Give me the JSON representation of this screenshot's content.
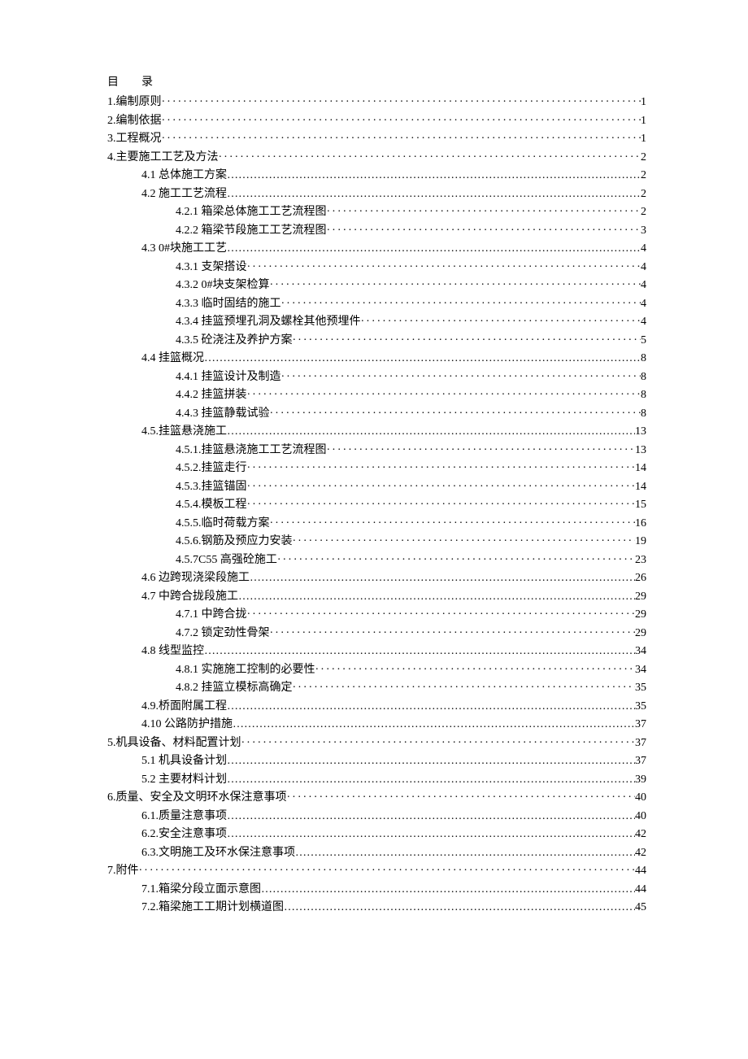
{
  "heading": "目　录",
  "leaders": {
    "dotted": "dotted",
    "cjk": "cjk"
  },
  "entries": [
    {
      "indent": 0,
      "title": "1.编制原则",
      "page": "1",
      "leader": "dotted"
    },
    {
      "indent": 0,
      "title": "2.编制依据",
      "page": "1",
      "leader": "dotted"
    },
    {
      "indent": 0,
      "title": "3.工程概况",
      "page": "1",
      "leader": "dotted"
    },
    {
      "indent": 0,
      "title": "4.主要施工工艺及方法",
      "page": "2",
      "leader": "dotted"
    },
    {
      "indent": 1,
      "title": "4.1 总体施工方案",
      "page": "2",
      "leader": "cjk"
    },
    {
      "indent": 1,
      "title": "4.2 施工工艺流程",
      "page": "2",
      "leader": "cjk"
    },
    {
      "indent": 2,
      "title": "4.2.1 箱梁总体施工工艺流程图",
      "page": "2",
      "leader": "dotted"
    },
    {
      "indent": 2,
      "title": "4.2.2 箱梁节段施工工艺流程图",
      "page": "3",
      "leader": "dotted"
    },
    {
      "indent": 1,
      "title": "4.3 0#块施工工艺",
      "page": "4",
      "leader": "cjk"
    },
    {
      "indent": 2,
      "title": "4.3.1 支架搭设",
      "page": "4",
      "leader": "dotted"
    },
    {
      "indent": 2,
      "title": "4.3.2 0#块支架检算",
      "page": "4",
      "leader": "dotted"
    },
    {
      "indent": 2,
      "title": "4.3.3 临时固结的施工",
      "page": "4",
      "leader": "dotted"
    },
    {
      "indent": 2,
      "title": "4.3.4 挂篮预埋孔洞及螺栓其他预埋件",
      "page": "4",
      "leader": "dotted"
    },
    {
      "indent": 2,
      "title": "4.3.5 砼浇注及养护方案",
      "page": "5",
      "leader": "dotted"
    },
    {
      "indent": 1,
      "title": "4.4 挂篮概况",
      "page": "8",
      "leader": "cjk"
    },
    {
      "indent": 2,
      "title": "4.4.1 挂篮设计及制造",
      "page": "8",
      "leader": "dotted"
    },
    {
      "indent": 2,
      "title": "4.4.2 挂篮拼装",
      "page": "8",
      "leader": "dotted"
    },
    {
      "indent": 2,
      "title": "4.4.3 挂篮静载试验",
      "page": "8",
      "leader": "dotted"
    },
    {
      "indent": 1,
      "title": "4.5.挂篮悬浇施工",
      "page": "13",
      "leader": "cjk"
    },
    {
      "indent": 2,
      "title": "4.5.1.挂篮悬浇施工工艺流程图",
      "page": "13",
      "leader": "dotted"
    },
    {
      "indent": 2,
      "title": "4.5.2.挂篮走行",
      "page": "14",
      "leader": "dotted"
    },
    {
      "indent": 2,
      "title": "4.5.3.挂篮锚固",
      "page": "14",
      "leader": "dotted"
    },
    {
      "indent": 2,
      "title": "4.5.4.模板工程",
      "page": "15",
      "leader": "dotted"
    },
    {
      "indent": 2,
      "title": "4.5.5.临时荷载方案",
      "page": "16",
      "leader": "dotted"
    },
    {
      "indent": 2,
      "title": "4.5.6.钢筋及预应力安装",
      "page": "19",
      "leader": "dotted"
    },
    {
      "indent": 2,
      "title": "4.5.7C55 高强砼施工",
      "page": "23",
      "leader": "dotted"
    },
    {
      "indent": 1,
      "title": "4.6 边跨现浇梁段施工",
      "page": "26",
      "leader": "cjk"
    },
    {
      "indent": 1,
      "title": "4.7 中跨合拢段施工",
      "page": "29",
      "leader": "cjk"
    },
    {
      "indent": 2,
      "title": "4.7.1 中跨合拢",
      "page": "29",
      "leader": "dotted"
    },
    {
      "indent": 2,
      "title": "4.7.2 锁定劲性骨架",
      "page": "29",
      "leader": "dotted"
    },
    {
      "indent": 1,
      "title": "4.8 线型监控",
      "page": "34",
      "leader": "cjk"
    },
    {
      "indent": 2,
      "title": "4.8.1 实施施工控制的必要性",
      "page": "34",
      "leader": "dotted"
    },
    {
      "indent": 2,
      "title": "4.8.2 挂篮立模标高确定",
      "page": "35",
      "leader": "dotted"
    },
    {
      "indent": 1,
      "title": "4.9.桥面附属工程",
      "page": "35",
      "leader": "cjk"
    },
    {
      "indent": 1,
      "title": "4.10 公路防护措施",
      "page": "37",
      "leader": "cjk"
    },
    {
      "indent": 0,
      "title": "5.机具设备、材料配置计划",
      "page": "37",
      "leader": "dotted"
    },
    {
      "indent": 1,
      "title": "5.1 机具设备计划",
      "page": "37",
      "leader": "cjk"
    },
    {
      "indent": 1,
      "title": "5.2 主要材料计划",
      "page": "39",
      "leader": "cjk"
    },
    {
      "indent": 0,
      "title": "6.质量、安全及文明环水保注意事项",
      "page": "40",
      "leader": "dotted"
    },
    {
      "indent": 1,
      "title": "6.1.质量注意事项",
      "page": "40",
      "leader": "cjk"
    },
    {
      "indent": 1,
      "title": "6.2.安全注意事项",
      "page": "42",
      "leader": "cjk"
    },
    {
      "indent": 1,
      "title": "6.3.文明施工及环水保注意事项",
      "page": "42",
      "leader": "cjk"
    },
    {
      "indent": 0,
      "title": "7.附件",
      "page": "44",
      "leader": "dotted"
    },
    {
      "indent": 1,
      "title": "7.1.箱梁分段立面示意图",
      "page": "44",
      "leader": "cjk"
    },
    {
      "indent": 1,
      "title": "7.2.箱梁施工工期计划横道图",
      "page": "45",
      "leader": "cjk"
    }
  ]
}
